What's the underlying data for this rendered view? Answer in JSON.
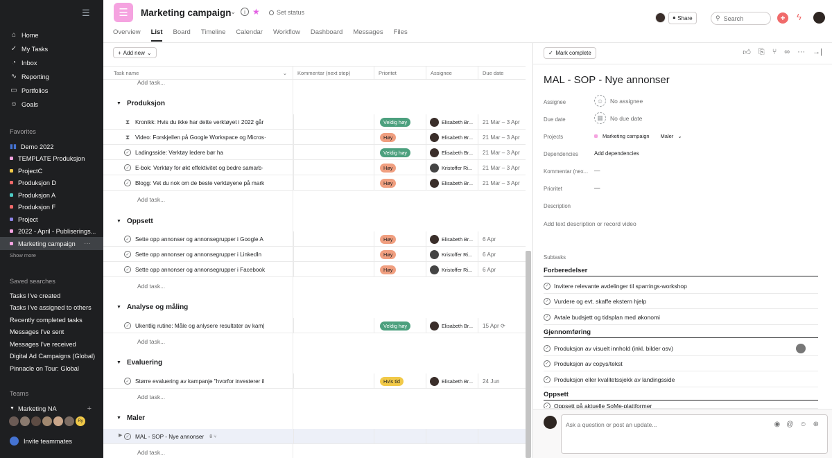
{
  "sidebar": {
    "nav": [
      {
        "label": "Home",
        "icon": "home-icon",
        "glyph": "⌂"
      },
      {
        "label": "My Tasks",
        "icon": "check-circle-icon",
        "glyph": "✓"
      },
      {
        "label": "Inbox",
        "icon": "bell-icon",
        "glyph": "◔"
      },
      {
        "label": "Reporting",
        "icon": "chart-icon",
        "glyph": "∿"
      },
      {
        "label": "Portfolios",
        "icon": "folder-icon",
        "glyph": "▭"
      },
      {
        "label": "Goals",
        "icon": "person-icon",
        "glyph": "☺"
      }
    ],
    "favorites_header": "Favorites",
    "favorites": [
      {
        "label": "Demo 2022",
        "color": "#4573d2",
        "kind": "bars"
      },
      {
        "label": "TEMPLATE Produksjon",
        "color": "#f5a3e0"
      },
      {
        "label": "ProjectC",
        "color": "#f1c948"
      },
      {
        "label": "Produksjon D",
        "color": "#f06a6a"
      },
      {
        "label": "Produksjon A",
        "color": "#4ecbc4"
      },
      {
        "label": "Produksjon F",
        "color": "#f06a6a"
      },
      {
        "label": "Project",
        "color": "#8d84e8"
      },
      {
        "label": "2022 - April - Publiserings...",
        "color": "#f5a3e0"
      },
      {
        "label": "Marketing campaign",
        "color": "#f5a3e0",
        "active": true
      }
    ],
    "show_more": "Show more",
    "saved_header": "Saved searches",
    "saved": [
      "Tasks I've created",
      "Tasks I've assigned to others",
      "Recently completed tasks",
      "Messages I've sent",
      "Messages I've received",
      "Digital Ad Campaigns (Global)",
      "Pinnacle on Tour: Global"
    ],
    "teams_header": "Teams",
    "team_name": "Marketing NA",
    "team_avatar_initials": "Ry",
    "invite": "Invite teammates"
  },
  "topbar": {
    "title": "Marketing campaign",
    "set_status": "Set status",
    "tabs": [
      "Overview",
      "List",
      "Board",
      "Timeline",
      "Calendar",
      "Workflow",
      "Dashboard",
      "Messages",
      "Files"
    ],
    "active_tab": "List",
    "share": "Share",
    "search_placeholder": "Search"
  },
  "list": {
    "add_new": "Add new",
    "columns": [
      "Task name",
      "Kommentar (next step)",
      "Prioritet",
      "Assignee",
      "Due date"
    ],
    "add_task": "Add task...",
    "sections": [
      {
        "name": "Produksjon",
        "tasks": [
          {
            "name": "Kronikk: Hvis du ikke har dette verktøyet i 2022 går",
            "mark": "hourglass",
            "priority": "Veldig høy",
            "pcolor": "green",
            "assignee": "Elisabeth Br...",
            "due": "21 Mar – 3 Apr"
          },
          {
            "name": "Video: Forskjellen på Google Workspace og Micros·",
            "mark": "hourglass",
            "priority": "Høy",
            "pcolor": "orange",
            "assignee": "Elisabeth Br...",
            "due": "21 Mar – 3 Apr"
          },
          {
            "name": "Ladingsside: Verktøy ledere bør ha",
            "mark": "check",
            "priority": "Veldig høy",
            "pcolor": "green",
            "assignee": "Elisabeth Br...",
            "due": "21 Mar – 3 Apr"
          },
          {
            "name": "E-bok: Verktøy for økt effektivitet og bedre samarb·",
            "mark": "check",
            "priority": "Høy",
            "pcolor": "orange",
            "assignee": "Kristoffer Ri...",
            "due": "21 Mar – 3 Apr"
          },
          {
            "name": "Blogg: Vet du nok om de beste verktøyene på mark",
            "mark": "check",
            "priority": "Høy",
            "pcolor": "orange",
            "assignee": "Elisabeth Br...",
            "due": "21 Mar – 3 Apr"
          }
        ]
      },
      {
        "name": "Oppsett",
        "tasks": [
          {
            "name": "Sette opp annonser og annonsegrupper i Google A",
            "mark": "check",
            "priority": "Høy",
            "pcolor": "orange",
            "assignee": "Elisabeth Br...",
            "due": "6 Apr"
          },
          {
            "name": "Sette opp annonser og annonsegrupper i LinkedIn",
            "mark": "check",
            "priority": "Høy",
            "pcolor": "orange",
            "assignee": "Kristoffer Ri...",
            "due": "6 Apr"
          },
          {
            "name": "Sette opp annonser og annonsegrupper i Facebook",
            "mark": "check",
            "priority": "Høy",
            "pcolor": "orange",
            "assignee": "Kristoffer Ri...",
            "due": "6 Apr"
          }
        ]
      },
      {
        "name": "Analyse og måling",
        "tasks": [
          {
            "name": "Ukentlig rutine: Måle og anlysere resultater av kam|",
            "mark": "check",
            "priority": "Veldig høy",
            "pcolor": "green",
            "assignee": "Elisabeth Br...",
            "due": "15 Apr ⟳"
          }
        ]
      },
      {
        "name": "Evaluering",
        "tasks": [
          {
            "name": "Større evaluering av kampanje \"hvorfor investerer il",
            "mark": "check",
            "priority": "Hvis tid",
            "pcolor": "yellow",
            "assignee": "Elisabeth Br...",
            "due": "24 Jun"
          }
        ]
      },
      {
        "name": "Maler",
        "tasks": [
          {
            "name": "MAL - SOP - Nye annonser",
            "mark": "check",
            "priority": "",
            "pcolor": "",
            "assignee": "",
            "due": "",
            "subtask_count": "8",
            "selected": true
          }
        ]
      }
    ]
  },
  "detail": {
    "mark_complete": "Mark complete",
    "title": "MAL - SOP - Nye annonser",
    "fields": {
      "assignee_label": "Assignee",
      "assignee_value": "No assignee",
      "due_label": "Due date",
      "due_value": "No due date",
      "projects_label": "Projects",
      "project_name": "Marketing campaign",
      "project_section": "Maler",
      "dependencies_label": "Dependencies",
      "dependencies_value": "Add dependencies",
      "kommentar_label": "Kommentar (nex...",
      "kommentar_value": "—",
      "prioritet_label": "Prioritet",
      "prioritet_value": "—",
      "description_label": "Description",
      "description_placeholder": "Add text description or record video"
    },
    "subtasks_label": "Subtasks",
    "groups": [
      {
        "name": "Forberedelser",
        "items": [
          "Invitere relevante avdelinger til sparrings-workshop",
          "Vurdere og evt. skaffe ekstern hjelp",
          "Avtale budsjett og tidsplan med økonomi"
        ]
      },
      {
        "name": "Gjennomføring",
        "items": [
          "Produksjon av visuelt innhold (inkl. bilder osv)",
          "Produksjon av copys/tekst",
          "Produksjon eller kvalitetssjekk av landingsside"
        ]
      },
      {
        "name": "Oppsett",
        "items": [
          "Oppsett på aktuelle SoMe-plattformer"
        ]
      }
    ],
    "comment_placeholder": "Ask a question or post an update..."
  }
}
